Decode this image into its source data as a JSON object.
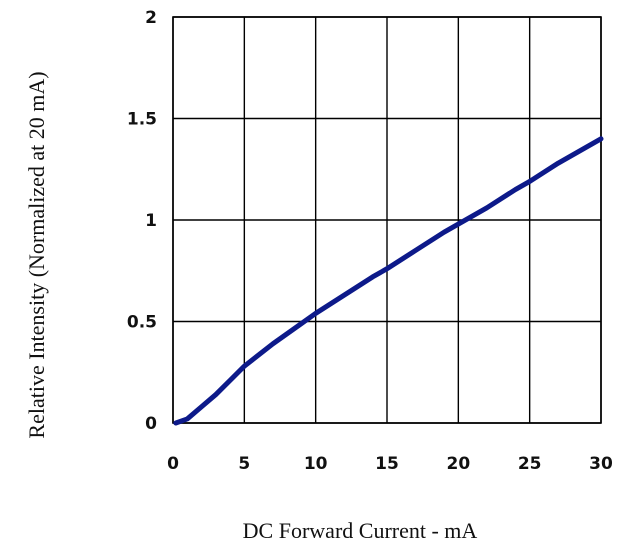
{
  "chart_data": {
    "type": "line",
    "title": "",
    "xlabel": "DC Forward Current - mA",
    "ylabel": "Relative Intensity (Normalized at 20 mA)",
    "xlim": [
      0,
      30
    ],
    "ylim": [
      0,
      2
    ],
    "x_ticks": [
      0,
      5,
      10,
      15,
      20,
      25,
      30
    ],
    "y_ticks": [
      0,
      0.5,
      1,
      1.5,
      2
    ],
    "x_tick_labels": [
      "0",
      "5",
      "10",
      "15",
      "20",
      "25",
      "30"
    ],
    "y_tick_labels": [
      "0",
      "0.5",
      "1",
      "1.5",
      "2"
    ],
    "grid": true,
    "series": [
      {
        "color": "#0d1a8a",
        "x": [
          0.2,
          1,
          2,
          3,
          4,
          5,
          7,
          9,
          10,
          12,
          14,
          15,
          17,
          19,
          20,
          22,
          24,
          25,
          27,
          29,
          30
        ],
        "y": [
          0,
          0.02,
          0.08,
          0.14,
          0.21,
          0.28,
          0.39,
          0.49,
          0.54,
          0.63,
          0.72,
          0.76,
          0.85,
          0.94,
          0.98,
          1.06,
          1.15,
          1.19,
          1.28,
          1.36,
          1.4
        ]
      }
    ]
  }
}
